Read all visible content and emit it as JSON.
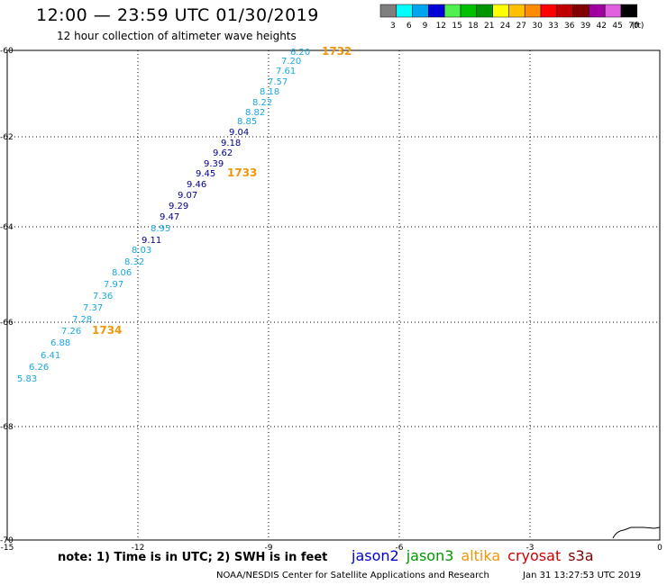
{
  "header": {
    "title": "12:00 — 23:59 UTC 01/30/2019",
    "subtitle": "12 hour collection of altimeter wave heights"
  },
  "color_scale": {
    "unit": "(ft)",
    "bins": [
      {
        "label": "3",
        "color": "#7f7f7f"
      },
      {
        "label": "6",
        "color": "#00ffff"
      },
      {
        "label": "9",
        "color": "#00a5f0"
      },
      {
        "label": "12",
        "color": "#0000d8"
      },
      {
        "label": "15",
        "color": "#50f050"
      },
      {
        "label": "18",
        "color": "#00c000"
      },
      {
        "label": "21",
        "color": "#009600"
      },
      {
        "label": "24",
        "color": "#ffff00"
      },
      {
        "label": "27",
        "color": "#ffc000"
      },
      {
        "label": "30",
        "color": "#ff8c00"
      },
      {
        "label": "33",
        "color": "#ff0000"
      },
      {
        "label": "36",
        "color": "#c00000"
      },
      {
        "label": "39",
        "color": "#800000"
      },
      {
        "label": "42",
        "color": "#a000a0"
      },
      {
        "label": "45",
        "color": "#e060e0"
      },
      {
        "label": "70",
        "color": "#000000"
      }
    ]
  },
  "axes": {
    "lat_labels": [
      "-60",
      "-62",
      "-64",
      "-66",
      "-68",
      "-70"
    ],
    "lon_labels": [
      "-15",
      "-12",
      "-9",
      "-6",
      "-3",
      "0"
    ]
  },
  "observations": [
    {
      "value": "6.20",
      "color": "#1aa7e0"
    },
    {
      "value": "7.20",
      "color": "#1aa7e0"
    },
    {
      "value": "7.61",
      "color": "#1aa7e0"
    },
    {
      "value": "7.57",
      "color": "#1aa7e0"
    },
    {
      "value": "8.18",
      "color": "#1aa7e0"
    },
    {
      "value": "8.22",
      "color": "#1aa7e0"
    },
    {
      "value": "8.82",
      "color": "#1aa7e0"
    },
    {
      "value": "8.85",
      "color": "#1aa7e0"
    },
    {
      "value": "9.04",
      "color": "#00008b"
    },
    {
      "value": "9.18",
      "color": "#00008b"
    },
    {
      "value": "9.62",
      "color": "#00008b"
    },
    {
      "value": "9.39",
      "color": "#00008b"
    },
    {
      "value": "9.45",
      "color": "#00008b"
    },
    {
      "value": "9.46",
      "color": "#00008b"
    },
    {
      "value": "9.07",
      "color": "#00008b"
    },
    {
      "value": "9.29",
      "color": "#00008b"
    },
    {
      "value": "9.47",
      "color": "#00008b"
    },
    {
      "value": "8.95",
      "color": "#1aa7e0"
    },
    {
      "value": "9.11",
      "color": "#00008b"
    },
    {
      "value": "8.03",
      "color": "#1aa7e0"
    },
    {
      "value": "8.32",
      "color": "#1aa7e0"
    },
    {
      "value": "8.06",
      "color": "#1aa7e0"
    },
    {
      "value": "7.97",
      "color": "#1aa7e0"
    },
    {
      "value": "7.36",
      "color": "#1aa7e0"
    },
    {
      "value": "7.37",
      "color": "#1aa7e0"
    },
    {
      "value": "7.28",
      "color": "#1aa7e0"
    },
    {
      "value": "7.26",
      "color": "#1aa7e0"
    },
    {
      "value": "6.88",
      "color": "#1aa7e0"
    },
    {
      "value": "6.41",
      "color": "#1aa7e0"
    },
    {
      "value": "6.26",
      "color": "#1aa7e0"
    },
    {
      "value": "5.83",
      "color": "#1aa7e0"
    }
  ],
  "pass_labels": [
    {
      "value": "1732",
      "color": "#f0960a"
    },
    {
      "value": "1733",
      "color": "#f0960a"
    },
    {
      "value": "1734",
      "color": "#f0960a"
    }
  ],
  "footer": {
    "note": "note: 1) Time is in UTC; 2) SWH is in feet",
    "satellites": [
      {
        "name": "jason2",
        "color": "#0000cc"
      },
      {
        "name": "jason3",
        "color": "#009600"
      },
      {
        "name": "altika",
        "color": "#f0960a"
      },
      {
        "name": "cryosat",
        "color": "#cc0000"
      },
      {
        "name": "s3a",
        "color": "#800000"
      }
    ],
    "credit": "NOAA/NESDIS Center for Satellite Applications and Research",
    "timestamp": "Jan 31 13:27:53 UTC 2019"
  }
}
